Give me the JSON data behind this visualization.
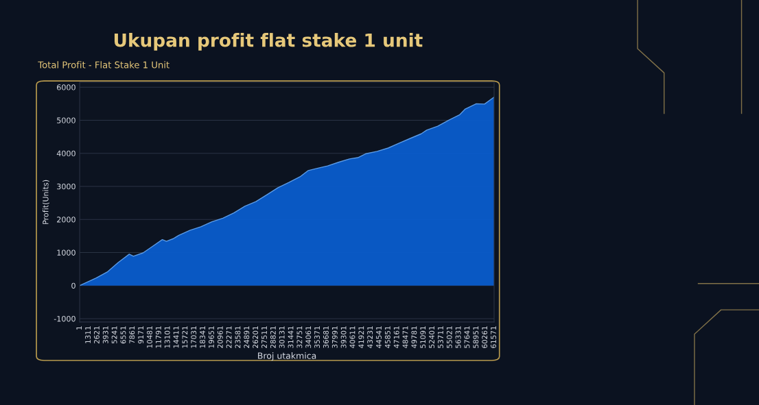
{
  "chart_data": {
    "type": "area",
    "title": "Ukupan profit flat stake 1 unit",
    "subtitle": "Total Profit - Flat Stake 1 Unit",
    "xlabel": "Broj utakmica",
    "ylabel": "Profit(Units)",
    "x": [
      0,
      2455,
      4092,
      5729,
      7366,
      7980,
      9412,
      10639,
      12276,
      12890,
      13913,
      14731,
      16368,
      18005,
      19642,
      21279,
      22916,
      24552,
      26189,
      27826,
      29463,
      31100,
      32737,
      33964,
      35192,
      36829,
      38466,
      40103,
      41330,
      42558,
      44195,
      45832,
      47468,
      49105,
      50742,
      51561,
      53198,
      54835,
      56472,
      57290,
      58927,
      60155,
      61577
    ],
    "series": [
      {
        "color": "#0a5ccc",
        "values": [
          0,
          230,
          410,
          700,
          950,
          890,
          990,
          1160,
          1390,
          1340,
          1420,
          1520,
          1670,
          1780,
          1930,
          2040,
          2200,
          2400,
          2540,
          2750,
          2960,
          3120,
          3290,
          3480,
          3540,
          3620,
          3730,
          3830,
          3870,
          3990,
          4060,
          4160,
          4310,
          4450,
          4590,
          4700,
          4820,
          5000,
          5170,
          5340,
          5500,
          5490,
          5700
        ]
      }
    ],
    "xlim": [
      0,
      61577
    ],
    "ylim": [
      -1100,
      6150
    ],
    "yticks": [
      6000,
      5000,
      4000,
      3000,
      2000,
      1000,
      0,
      -1000
    ],
    "xticks": [
      1,
      1311,
      2621,
      3931,
      5241,
      6551,
      7861,
      9171,
      10481,
      11791,
      13101,
      14411,
      15721,
      17031,
      18341,
      19651,
      20961,
      22271,
      23581,
      24891,
      26201,
      27511,
      28821,
      30131,
      31441,
      32751,
      34061,
      35371,
      36681,
      37991,
      39301,
      40611,
      41921,
      43231,
      44541,
      45851,
      47161,
      48471,
      49781,
      51091,
      52401,
      53711,
      55021,
      56331,
      57641,
      58951,
      60261,
      61571
    ],
    "grid": "y",
    "marker": "none",
    "line_style": "solid"
  }
}
